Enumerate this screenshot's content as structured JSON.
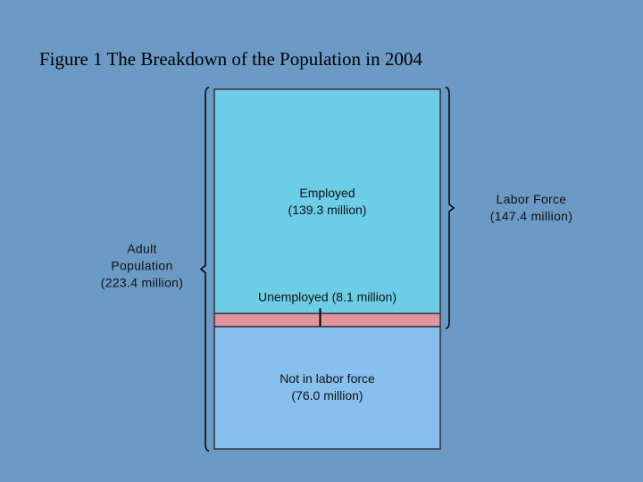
{
  "chart_data": {
    "type": "stacked-bar",
    "title": "Figure 1 The Breakdown of the Population in 2004",
    "series": [
      {
        "name": "Employed",
        "color": "#6ccde6",
        "values": [
          139.3
        ],
        "value_labels": [
          "(139.3 million)"
        ]
      },
      {
        "name": "Unemployed",
        "color": "#e3929f",
        "values": [
          8.1
        ],
        "value_labels": [
          "(8.1 million)"
        ]
      },
      {
        "name": "Not in labor force",
        "color": "#87c0ee",
        "values": [
          76.0
        ],
        "value_labels": [
          "(76.0 million)"
        ]
      }
    ],
    "annotations": [
      {
        "text": "Adult Population",
        "value": 223.4,
        "value_label": "(223.4 million)"
      },
      {
        "text": "Labor Force",
        "value": 147.4,
        "value_label": "(147.4 million)"
      }
    ]
  }
}
